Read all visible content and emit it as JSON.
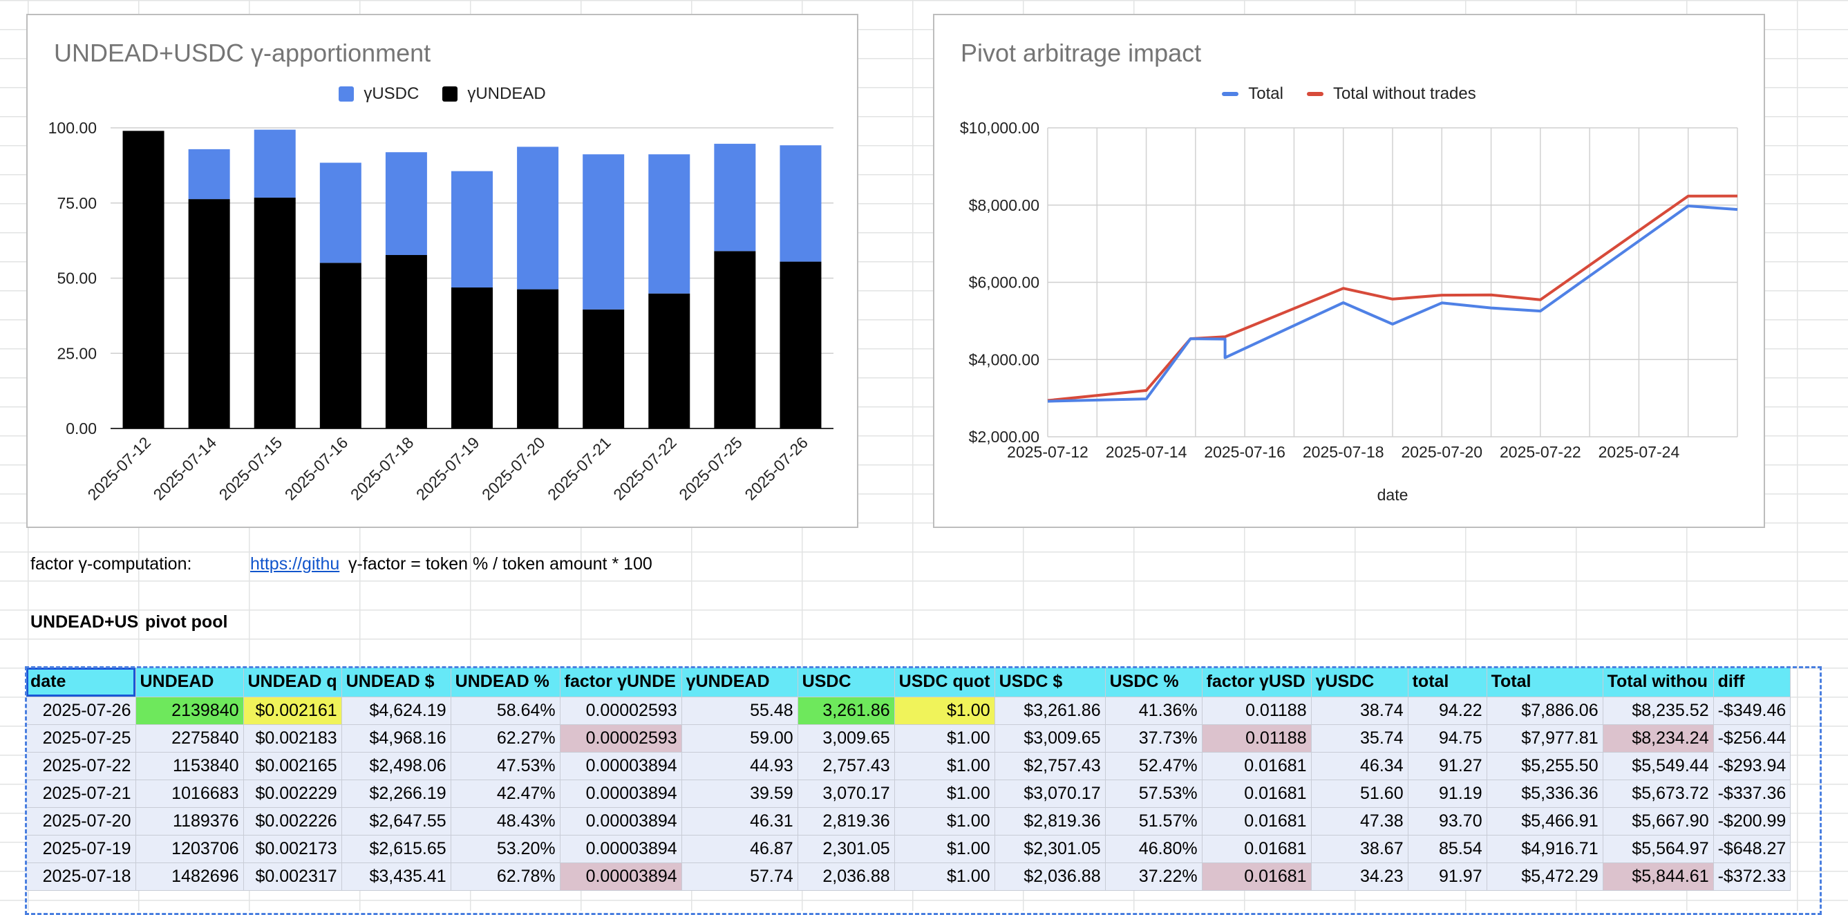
{
  "colors": {
    "yusdc": "#5586ea",
    "yundead": "#000000",
    "total": "#4f81e6",
    "total_without_trades": "#d74a3a",
    "header_bg": "#66e8f7",
    "highlight_green": "#6ee85c",
    "highlight_yellow": "#f0f35a",
    "highlight_pink": "#dcc2cd"
  },
  "chart_data": [
    {
      "type": "bar",
      "stacked": true,
      "title": "UNDEAD+USDC γ-apportionment",
      "legend": [
        "γUSDC",
        "γUNDEAD"
      ],
      "legend_position": "top",
      "categories": [
        "2025-07-12",
        "2025-07-14",
        "2025-07-15",
        "2025-07-16",
        "2025-07-18",
        "2025-07-19",
        "2025-07-20",
        "2025-07-21",
        "2025-07-22",
        "2025-07-25",
        "2025-07-26"
      ],
      "series": [
        {
          "name": "γUNDEAD",
          "values": [
            99.0,
            76.3,
            76.8,
            55.1,
            57.7,
            46.9,
            46.3,
            39.6,
            44.9,
            59.0,
            55.5
          ]
        },
        {
          "name": "γUSDC",
          "values": [
            0,
            16.6,
            22.6,
            33.3,
            34.2,
            38.7,
            47.4,
            51.6,
            46.3,
            35.7,
            38.7
          ]
        }
      ],
      "ylim": [
        0,
        100
      ],
      "yticks": [
        "0.00",
        "25.00",
        "50.00",
        "75.00",
        "100.00"
      ],
      "grid": true
    },
    {
      "type": "line",
      "title": "Pivot arbitrage impact",
      "xlabel": "date",
      "legend": [
        "Total",
        "Total without trades"
      ],
      "legend_position": "top",
      "x": [
        "2025-07-12",
        "2025-07-14",
        "2025-07-15",
        "2025-07-16",
        "2025-07-16",
        "2025-07-18",
        "2025-07-19",
        "2025-07-20",
        "2025-07-21",
        "2025-07-22",
        "2025-07-25",
        "2025-07-26"
      ],
      "x_days": [
        0,
        2,
        2.9,
        3.6,
        3.6,
        6,
        7,
        8,
        9,
        10,
        13,
        14
      ],
      "xticks": [
        "2025-07-12",
        "2025-07-14",
        "2025-07-16",
        "2025-07-18",
        "2025-07-20",
        "2025-07-22",
        "2025-07-24"
      ],
      "series": [
        {
          "name": "Total",
          "values": [
            2920,
            2980,
            4540,
            4530,
            4050,
            5472,
            4917,
            5467,
            5336,
            5256,
            7978,
            7886
          ]
        },
        {
          "name": "Total without trades",
          "values": [
            2940,
            3200,
            4540,
            4590,
            4590,
            5845,
            5565,
            5668,
            5674,
            5549,
            8234,
            8236
          ]
        }
      ],
      "ylim": [
        2000,
        10000
      ],
      "yticks": [
        "$2,000.00",
        "$4,000.00",
        "$6,000.00",
        "$8,000.00",
        "$10,000.00"
      ],
      "grid": true
    }
  ],
  "charts": {
    "bar_title": "UNDEAD+USDC γ-apportionment",
    "bar_legend": [
      "γUSDC",
      "γUNDEAD"
    ],
    "line_title": "Pivot arbitrage impact",
    "line_legend": [
      "Total",
      "Total without trades"
    ],
    "line_xlabel": "date"
  },
  "sheet": {
    "factor_label": "factor γ-computation:",
    "factor_link": "https://githu",
    "factor_formula": "γ-factor = token % / token amount * 100",
    "pool_label_a": "UNDEAD+US",
    "pool_label_b": "pivot pool"
  },
  "table": {
    "headers": [
      "date",
      "UNDEAD",
      "UNDEAD q",
      "UNDEAD $",
      "UNDEAD %",
      "factor γUNDE",
      "γUNDEAD",
      "USDC",
      "USDC quot",
      "USDC $",
      "USDC %",
      "factor γUSD",
      "γUSDC",
      "total",
      "Total",
      "Total withou",
      "diff"
    ],
    "rows": [
      [
        "2025-07-26",
        "2139840",
        "$0.002161",
        "$4,624.19",
        "58.64%",
        "0.00002593",
        "55.48",
        "3,261.86",
        "$1.00",
        "$3,261.86",
        "41.36%",
        "0.01188",
        "38.74",
        "94.22",
        "$7,886.06",
        "$8,235.52",
        "-$349.46"
      ],
      [
        "2025-07-25",
        "2275840",
        "$0.002183",
        "$4,968.16",
        "62.27%",
        "0.00002593",
        "59.00",
        "3,009.65",
        "$1.00",
        "$3,009.65",
        "37.73%",
        "0.01188",
        "35.74",
        "94.75",
        "$7,977.81",
        "$8,234.24",
        "-$256.44"
      ],
      [
        "2025-07-22",
        "1153840",
        "$0.002165",
        "$2,498.06",
        "47.53%",
        "0.00003894",
        "44.93",
        "2,757.43",
        "$1.00",
        "$2,757.43",
        "52.47%",
        "0.01681",
        "46.34",
        "91.27",
        "$5,255.50",
        "$5,549.44",
        "-$293.94"
      ],
      [
        "2025-07-21",
        "1016683",
        "$0.002229",
        "$2,266.19",
        "42.47%",
        "0.00003894",
        "39.59",
        "3,070.17",
        "$1.00",
        "$3,070.17",
        "57.53%",
        "0.01681",
        "51.60",
        "91.19",
        "$5,336.36",
        "$5,673.72",
        "-$337.36"
      ],
      [
        "2025-07-20",
        "1189376",
        "$0.002226",
        "$2,647.55",
        "48.43%",
        "0.00003894",
        "46.31",
        "2,819.36",
        "$1.00",
        "$2,819.36",
        "51.57%",
        "0.01681",
        "47.38",
        "93.70",
        "$5,466.91",
        "$5,667.90",
        "-$200.99"
      ],
      [
        "2025-07-19",
        "1203706",
        "$0.002173",
        "$2,615.65",
        "53.20%",
        "0.00003894",
        "46.87",
        "2,301.05",
        "$1.00",
        "$2,301.05",
        "46.80%",
        "0.01681",
        "38.67",
        "85.54",
        "$4,916.71",
        "$5,564.97",
        "-$648.27"
      ],
      [
        "2025-07-18",
        "1482696",
        "$0.002317",
        "$3,435.41",
        "62.78%",
        "0.00003894",
        "57.74",
        "2,036.88",
        "$1.00",
        "$2,036.88",
        "37.22%",
        "0.01681",
        "34.23",
        "91.97",
        "$5,472.29",
        "$5,844.61",
        "-$372.33"
      ]
    ],
    "highlights": {
      "0": {
        "1": "green",
        "2": "yellow",
        "7": "green",
        "8": "yellow"
      },
      "1": {
        "5": "pink",
        "11": "pink",
        "15": "pink"
      },
      "6": {
        "5": "pink",
        "11": "pink",
        "15": "pink"
      }
    }
  }
}
